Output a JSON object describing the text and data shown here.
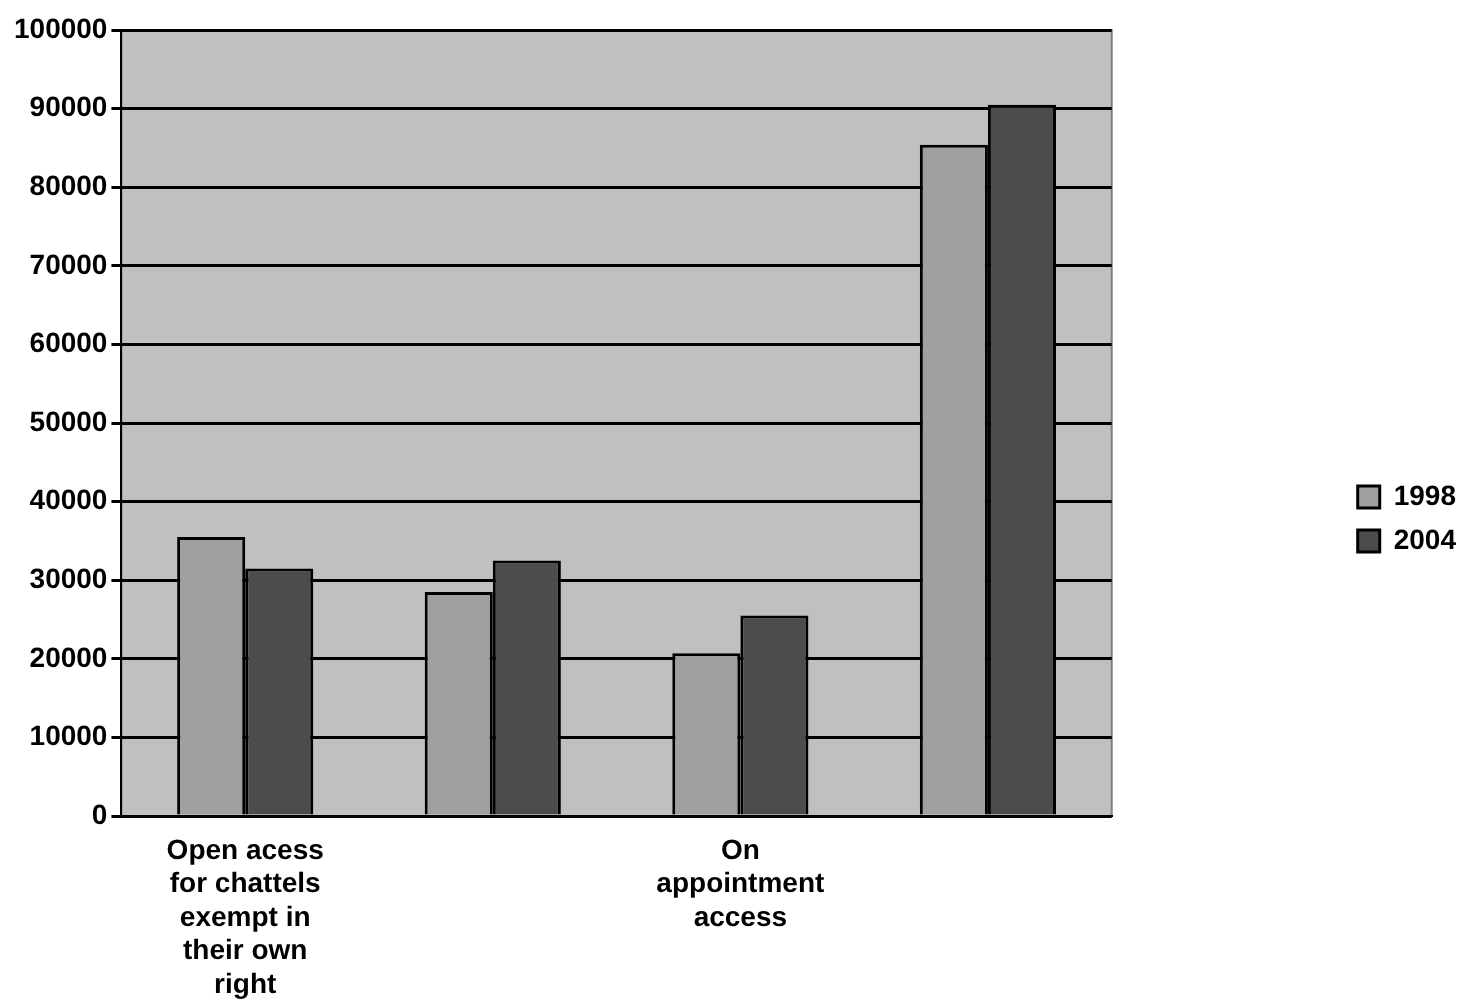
{
  "chart_data": {
    "type": "bar",
    "categories": [
      "Open acess for chattels exempt in their own right",
      null,
      "On appointment access",
      null
    ],
    "series": [
      {
        "name": "1998",
        "color": "#a0a0a0",
        "values": [
          35500,
          28500,
          20700,
          85400
        ]
      },
      {
        "name": "2004",
        "color": "#4c4c4c",
        "values": [
          31500,
          32500,
          25500,
          90500
        ]
      }
    ],
    "ylim": [
      0,
      100000
    ],
    "yticks": [
      0,
      10000,
      20000,
      30000,
      40000,
      50000,
      60000,
      70000,
      80000,
      90000,
      100000
    ],
    "grid": "y",
    "legend": "right"
  }
}
